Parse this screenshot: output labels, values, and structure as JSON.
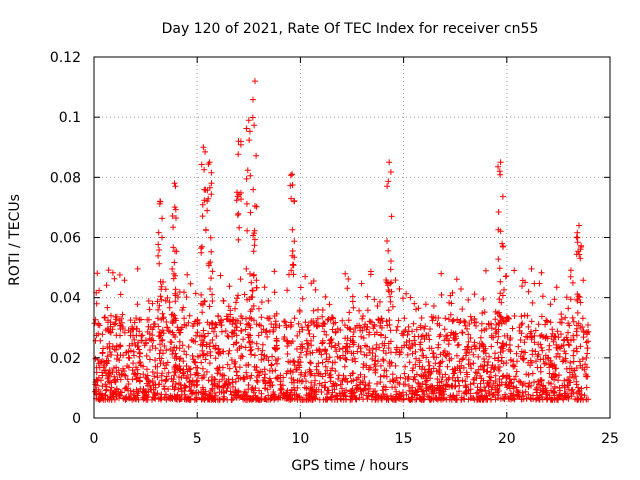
{
  "chart_data": {
    "type": "scatter",
    "title": "Day 120 of 2021, Rate Of TEC Index for receiver cn55",
    "xlabel": "GPS time / hours",
    "ylabel": "ROTI / TECUs",
    "xlim": [
      0,
      25
    ],
    "ylim": [
      0,
      0.12
    ],
    "x_ticks": [
      0,
      5,
      10,
      15,
      20,
      25
    ],
    "y_ticks": [
      0,
      0.02,
      0.04,
      0.06,
      0.08,
      0.1,
      0.12
    ],
    "x_tick_labels": [
      "0",
      "5",
      "10",
      "15",
      "20",
      "25"
    ],
    "y_tick_labels": [
      "0",
      "0.02",
      "0.04",
      "0.06",
      "0.08",
      "0.1",
      "0.12"
    ],
    "grid": true,
    "marker": "plus",
    "color": "#ff0000",
    "series": [
      {
        "name": "ROTI",
        "description": "dense band of points mostly between 0.005 and 0.03 across 0-24 h, with peaks",
        "peaks": [
          {
            "x": 3.2,
            "y": 0.072
          },
          {
            "x": 3.9,
            "y": 0.078
          },
          {
            "x": 5.3,
            "y": 0.09
          },
          {
            "x": 5.6,
            "y": 0.085
          },
          {
            "x": 7.0,
            "y": 0.092
          },
          {
            "x": 7.5,
            "y": 0.099
          },
          {
            "x": 7.8,
            "y": 0.112
          },
          {
            "x": 9.6,
            "y": 0.081
          },
          {
            "x": 14.3,
            "y": 0.085
          },
          {
            "x": 19.7,
            "y": 0.085
          },
          {
            "x": 23.5,
            "y": 0.064
          }
        ]
      }
    ]
  }
}
